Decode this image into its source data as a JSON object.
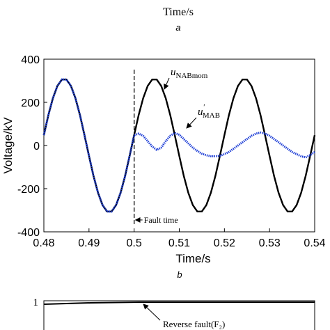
{
  "panel_a": {
    "xlabel": "Time/s",
    "caption": "a"
  },
  "chart_data": {
    "type": "line",
    "caption": "b",
    "xlabel": "Time/s",
    "ylabel": "Voltage/kV",
    "x": [
      0.48,
      0.481,
      0.482,
      0.483,
      0.484,
      0.485,
      0.486,
      0.487,
      0.488,
      0.489,
      0.49,
      0.491,
      0.492,
      0.493,
      0.494,
      0.495,
      0.496,
      0.497,
      0.498,
      0.499,
      0.5,
      0.501,
      0.502,
      0.503,
      0.504,
      0.505,
      0.506,
      0.507,
      0.508,
      0.509,
      0.51,
      0.511,
      0.512,
      0.513,
      0.514,
      0.515,
      0.516,
      0.517,
      0.518,
      0.519,
      0.52,
      0.521,
      0.522,
      0.523,
      0.524,
      0.525,
      0.526,
      0.527,
      0.528,
      0.529,
      0.53,
      0.531,
      0.532,
      0.533,
      0.534,
      0.535,
      0.536,
      0.537,
      0.538,
      0.539,
      0.54
    ],
    "series": [
      {
        "name": "u",
        "name_sub": "NABmom",
        "color": "#000000",
        "style": "solid",
        "values": [
          48,
          141,
          219,
          276,
          306,
          306,
          276,
          219,
          141,
          48,
          -48,
          -141,
          -219,
          -276,
          -306,
          -306,
          -276,
          -219,
          -141,
          -48,
          48,
          141,
          219,
          276,
          306,
          306,
          276,
          219,
          141,
          48,
          -48,
          -141,
          -219,
          -276,
          -306,
          -306,
          -276,
          -219,
          -141,
          -48,
          48,
          141,
          219,
          276,
          306,
          306,
          276,
          219,
          141,
          48,
          -48,
          -141,
          -219,
          -276,
          -306,
          -306,
          -276,
          -219,
          -141,
          -48,
          48
        ]
      },
      {
        "name": "u",
        "name_sup": "'",
        "name_sub": "MAB",
        "color": "#1f3fd6",
        "style": "dotted",
        "values": [
          48,
          141,
          219,
          276,
          306,
          306,
          276,
          219,
          141,
          48,
          -48,
          -141,
          -219,
          -276,
          -306,
          -306,
          -276,
          -219,
          -141,
          -48,
          48,
          55,
          45,
          20,
          -5,
          -20,
          -10,
          20,
          45,
          58,
          50,
          30,
          10,
          -10,
          -25,
          -38,
          -45,
          -50,
          -50,
          -48,
          -40,
          -30,
          -15,
          0,
          15,
          30,
          45,
          55,
          60,
          55,
          45,
          30,
          15,
          0,
          -15,
          -30,
          -40,
          -50,
          -55,
          -45,
          -30
        ]
      }
    ],
    "fault_time": 0.5,
    "fault_label": "Fault time",
    "xlim": [
      0.48,
      0.54
    ],
    "xticks": [
      0.48,
      0.49,
      0.5,
      0.51,
      0.52,
      0.53,
      0.54
    ],
    "ylim": [
      -400,
      400
    ],
    "yticks": [
      -400,
      -200,
      0,
      200,
      400
    ]
  },
  "panel_c": {
    "ytick_label": "1",
    "annotation": "Reverse fault(F₂)"
  }
}
